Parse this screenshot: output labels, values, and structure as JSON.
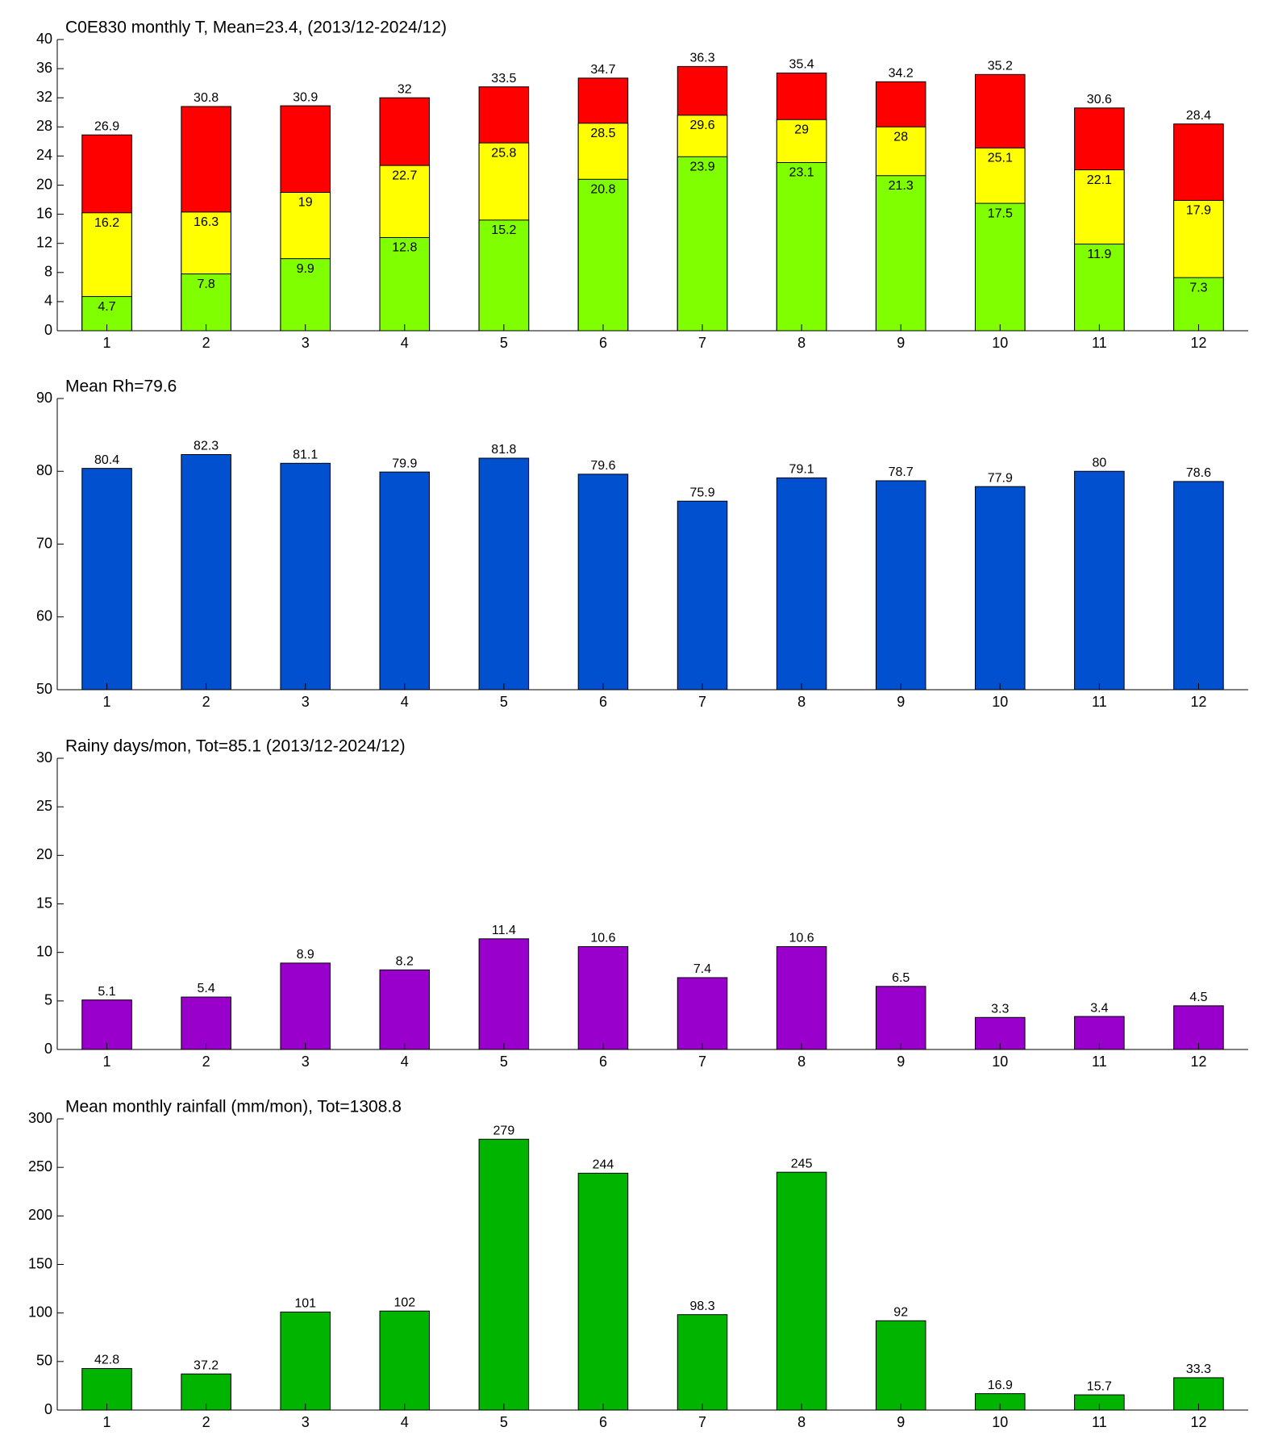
{
  "chart_data": [
    {
      "type": "bar",
      "title": "C0E830 monthly T, Mean=23.4, (2013/12-2024/12)",
      "categories": [
        "1",
        "2",
        "3",
        "4",
        "5",
        "6",
        "7",
        "8",
        "9",
        "10",
        "11",
        "12"
      ],
      "series": [
        {
          "color": "#ff0000",
          "values": [
            26.9,
            30.8,
            30.9,
            32,
            33.5,
            34.7,
            36.3,
            35.4,
            34.2,
            35.2,
            30.6,
            28.4
          ]
        },
        {
          "color": "#ffff00",
          "values": [
            16.2,
            16.3,
            19,
            22.7,
            25.8,
            28.5,
            29.6,
            29,
            28,
            25.1,
            22.1,
            17.9
          ]
        },
        {
          "color": "#80ff00",
          "values": [
            4.7,
            7.8,
            9.9,
            12.8,
            15.2,
            20.8,
            23.9,
            23.1,
            21.3,
            17.5,
            11.9,
            7.3
          ]
        }
      ],
      "ylim": [
        0,
        40
      ],
      "yticks": [
        0,
        4,
        8,
        12,
        16,
        20,
        24,
        28,
        32,
        36,
        40
      ]
    },
    {
      "type": "bar",
      "title": "Mean Rh=79.6",
      "categories": [
        "1",
        "2",
        "3",
        "4",
        "5",
        "6",
        "7",
        "8",
        "9",
        "10",
        "11",
        "12"
      ],
      "series": [
        {
          "color": "#0050d0",
          "values": [
            80.4,
            82.3,
            81.1,
            79.9,
            81.8,
            79.6,
            75.9,
            79.1,
            78.7,
            77.9,
            80,
            78.6
          ]
        }
      ],
      "ylim": [
        50,
        90
      ],
      "yticks": [
        50,
        60,
        70,
        80,
        90
      ]
    },
    {
      "type": "bar",
      "title": "Rainy days/mon, Tot=85.1 (2013/12-2024/12)",
      "categories": [
        "1",
        "2",
        "3",
        "4",
        "5",
        "6",
        "7",
        "8",
        "9",
        "10",
        "11",
        "12"
      ],
      "series": [
        {
          "color": "#9900cc",
          "values": [
            5.1,
            5.4,
            8.9,
            8.2,
            11.4,
            10.6,
            7.4,
            10.6,
            6.5,
            3.3,
            3.4,
            4.5
          ]
        }
      ],
      "ylim": [
        0,
        30
      ],
      "yticks": [
        0,
        5,
        10,
        15,
        20,
        25,
        30
      ]
    },
    {
      "type": "bar",
      "title": "Mean monthly rainfall (mm/mon), Tot=1308.8",
      "categories": [
        "1",
        "2",
        "3",
        "4",
        "5",
        "6",
        "7",
        "8",
        "9",
        "10",
        "11",
        "12"
      ],
      "series": [
        {
          "color": "#00b400",
          "values": [
            42.8,
            37.2,
            101,
            102,
            279,
            244,
            98.3,
            245,
            92,
            16.9,
            15.7,
            33.3
          ]
        }
      ],
      "ylim": [
        0,
        300
      ],
      "yticks": [
        0,
        50,
        100,
        150,
        200,
        250,
        300
      ]
    }
  ]
}
